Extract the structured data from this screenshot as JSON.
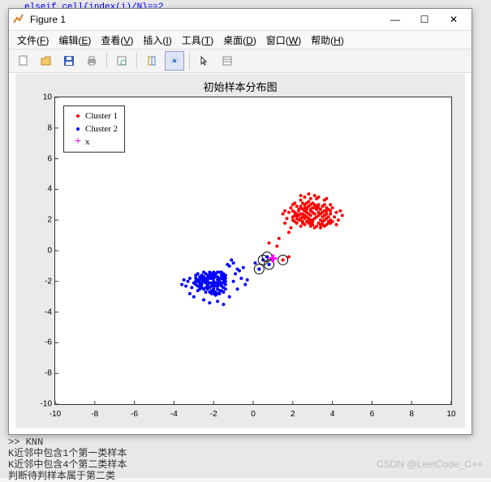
{
  "background_code": "elseif cell{index(i)/N}==2",
  "window": {
    "title": "Figure 1",
    "min_label": "—",
    "max_label": "☐",
    "close_label": "✕"
  },
  "menu": [
    {
      "label": "文件",
      "key": "F"
    },
    {
      "label": "编辑",
      "key": "E"
    },
    {
      "label": "查看",
      "key": "V"
    },
    {
      "label": "插入",
      "key": "I"
    },
    {
      "label": "工具",
      "key": "T"
    },
    {
      "label": "桌面",
      "key": "D"
    },
    {
      "label": "窗口",
      "key": "W"
    },
    {
      "label": "帮助",
      "key": "H"
    }
  ],
  "chart": {
    "type": "scatter",
    "title": "初始样本分布图",
    "title_fontsize": 13,
    "xlim": [
      -10,
      10
    ],
    "ylim": [
      -10,
      10
    ],
    "xtick_step": 2,
    "ytick_step": 2,
    "background_color": "#ffffff",
    "axes_color": "#333333",
    "tick_fontsize": 10,
    "legend": {
      "position": "upper-left",
      "items": [
        {
          "label": "Cluster 1",
          "marker": "dot",
          "color": "#ff0000"
        },
        {
          "label": "Cluster 2",
          "marker": "dot",
          "color": "#0000ff"
        },
        {
          "label": "x",
          "marker": "plus",
          "color": "#ff00ff"
        }
      ]
    },
    "marker_size": 4,
    "cluster1_color": "#ff0000",
    "cluster2_color": "#0000ff",
    "x_marker_color": "#ff00ff",
    "x_marker_size": 10,
    "ring_color": "#000000",
    "cluster1": [
      [
        2.8,
        2.1
      ],
      [
        3.1,
        2.4
      ],
      [
        2.5,
        1.8
      ],
      [
        3.4,
        2.0
      ],
      [
        2.9,
        2.6
      ],
      [
        2.2,
        2.2
      ],
      [
        3.6,
        2.3
      ],
      [
        3.0,
        1.9
      ],
      [
        2.7,
        2.8
      ],
      [
        3.3,
        2.5
      ],
      [
        2.4,
        2.0
      ],
      [
        3.8,
        1.8
      ],
      [
        2.6,
        3.0
      ],
      [
        3.2,
        2.7
      ],
      [
        2.1,
        2.5
      ],
      [
        3.5,
        2.9
      ],
      [
        2.9,
        1.6
      ],
      [
        2.3,
        2.7
      ],
      [
        3.7,
        2.1
      ],
      [
        3.0,
        3.1
      ],
      [
        2.5,
        2.4
      ],
      [
        3.4,
        1.7
      ],
      [
        2.8,
        2.9
      ],
      [
        2.0,
        2.0
      ],
      [
        3.9,
        2.4
      ],
      [
        2.6,
        2.1
      ],
      [
        3.1,
        1.5
      ],
      [
        2.4,
        2.9
      ],
      [
        3.6,
        2.6
      ],
      [
        2.9,
        2.3
      ],
      [
        2.2,
        1.8
      ],
      [
        3.3,
        3.0
      ],
      [
        2.7,
        2.5
      ],
      [
        3.5,
        1.9
      ],
      [
        2.5,
        2.7
      ],
      [
        3.0,
        2.0
      ],
      [
        3.8,
        2.7
      ],
      [
        2.3,
        2.3
      ],
      [
        3.2,
        2.2
      ],
      [
        2.6,
        1.7
      ],
      [
        3.7,
        2.8
      ],
      [
        2.8,
        3.2
      ],
      [
        2.1,
        2.3
      ],
      [
        3.4,
        2.4
      ],
      [
        2.9,
        2.0
      ],
      [
        2.4,
        1.6
      ],
      [
        3.6,
        1.6
      ],
      [
        3.1,
        2.8
      ],
      [
        2.7,
        2.2
      ],
      [
        3.9,
        2.0
      ],
      [
        2.5,
        3.1
      ],
      [
        3.3,
        1.8
      ],
      [
        2.0,
        2.6
      ],
      [
        3.5,
        2.2
      ],
      [
        2.8,
        1.8
      ],
      [
        2.2,
        2.9
      ],
      [
        3.7,
        1.7
      ],
      [
        3.0,
        2.5
      ],
      [
        2.6,
        2.8
      ],
      [
        3.8,
        2.2
      ],
      [
        2.4,
        2.4
      ],
      [
        3.2,
        1.6
      ],
      [
        2.9,
        3.0
      ],
      [
        2.3,
        2.0
      ],
      [
        3.6,
        3.0
      ],
      [
        2.7,
        1.9
      ],
      [
        3.4,
        2.7
      ],
      [
        2.5,
        2.2
      ],
      [
        3.9,
        2.6
      ],
      [
        2.1,
        1.9
      ],
      [
        3.1,
        2.1
      ],
      [
        2.8,
        2.4
      ],
      [
        3.5,
        2.5
      ],
      [
        2.6,
        2.6
      ],
      [
        3.3,
        2.3
      ],
      [
        2.4,
        2.8
      ],
      [
        3.7,
        2.4
      ],
      [
        2.9,
        2.7
      ],
      [
        2.2,
        2.4
      ],
      [
        3.0,
        1.7
      ],
      [
        3.8,
        1.9
      ],
      [
        2.7,
        3.1
      ],
      [
        3.4,
        1.5
      ],
      [
        2.5,
        1.9
      ],
      [
        3.6,
        2.0
      ],
      [
        2.3,
        2.6
      ],
      [
        3.2,
        2.9
      ],
      [
        2.8,
        2.0
      ],
      [
        3.9,
        1.8
      ],
      [
        2.6,
        2.3
      ],
      [
        2.0,
        2.2
      ],
      [
        3.5,
        1.7
      ],
      [
        2.4,
        2.1
      ],
      [
        3.1,
        3.0
      ],
      [
        2.9,
        1.8
      ],
      [
        3.7,
        2.6
      ],
      [
        2.2,
        2.1
      ],
      [
        3.3,
        2.8
      ],
      [
        2.7,
        2.7
      ],
      [
        3.0,
        2.8
      ],
      [
        1.8,
        1.2
      ],
      [
        4.2,
        2.5
      ],
      [
        3.2,
        3.4
      ],
      [
        1.9,
        2.8
      ],
      [
        4.0,
        1.9
      ],
      [
        2.4,
        3.3
      ],
      [
        3.6,
        3.3
      ],
      [
        1.7,
        2.1
      ],
      [
        4.1,
        2.2
      ],
      [
        2.9,
        3.4
      ],
      [
        1.6,
        1.8
      ],
      [
        4.3,
        2.0
      ],
      [
        2.1,
        3.1
      ],
      [
        3.9,
        3.0
      ],
      [
        2.6,
        3.5
      ],
      [
        1.5,
        2.4
      ],
      [
        4.4,
        2.6
      ],
      [
        3.3,
        3.5
      ],
      [
        1.8,
        2.5
      ],
      [
        4.0,
        2.8
      ],
      [
        2.8,
        3.7
      ],
      [
        1.9,
        1.5
      ],
      [
        4.2,
        1.7
      ],
      [
        2.4,
        3.6
      ],
      [
        3.7,
        3.4
      ],
      [
        2.0,
        3.0
      ],
      [
        1.6,
        2.6
      ],
      [
        4.5,
        2.3
      ],
      [
        3.1,
        3.6
      ],
      [
        0.8,
        0.5
      ],
      [
        1.2,
        0.3
      ],
      [
        1.5,
        -0.6
      ],
      [
        1.8,
        -0.4
      ],
      [
        1.3,
        0.8
      ]
    ],
    "cluster2": [
      [
        -2.1,
        -1.8
      ],
      [
        -1.8,
        -2.1
      ],
      [
        -2.4,
        -1.5
      ],
      [
        -1.5,
        -2.4
      ],
      [
        -2.0,
        -2.0
      ],
      [
        -2.7,
        -1.9
      ],
      [
        -1.9,
        -2.7
      ],
      [
        -2.3,
        -2.3
      ],
      [
        -1.6,
        -1.6
      ],
      [
        -2.6,
        -2.1
      ],
      [
        -2.1,
        -2.6
      ],
      [
        -1.7,
        -2.0
      ],
      [
        -2.5,
        -1.7
      ],
      [
        -2.0,
        -1.4
      ],
      [
        -1.4,
        -2.2
      ],
      [
        -2.8,
        -2.0
      ],
      [
        -2.0,
        -2.8
      ],
      [
        -2.2,
        -1.8
      ],
      [
        -1.8,
        -2.5
      ],
      [
        -2.4,
        -2.4
      ],
      [
        -1.5,
        -1.9
      ],
      [
        -2.9,
        -1.8
      ],
      [
        -1.9,
        -1.5
      ],
      [
        -2.3,
        -2.0
      ],
      [
        -2.0,
        -2.3
      ],
      [
        -1.6,
        -2.6
      ],
      [
        -2.6,
        -1.6
      ],
      [
        -2.1,
        -2.1
      ],
      [
        -1.7,
        -2.8
      ],
      [
        -2.7,
        -2.3
      ],
      [
        -2.2,
        -1.4
      ],
      [
        -1.4,
        -1.8
      ],
      [
        -2.5,
        -2.5
      ],
      [
        -1.8,
        -1.7
      ],
      [
        -2.8,
        -2.6
      ],
      [
        -2.0,
        -1.8
      ],
      [
        -1.5,
        -2.1
      ],
      [
        -2.3,
        -1.6
      ],
      [
        -1.9,
        -2.3
      ],
      [
        -2.6,
        -1.9
      ],
      [
        -2.1,
        -1.5
      ],
      [
        -1.6,
        -2.3
      ],
      [
        -2.4,
        -2.1
      ],
      [
        -1.7,
        -1.4
      ],
      [
        -2.9,
        -2.2
      ],
      [
        -2.2,
        -2.7
      ],
      [
        -1.8,
        -1.9
      ],
      [
        -2.5,
        -2.0
      ],
      [
        -2.0,
        -2.5
      ],
      [
        -1.4,
        -1.6
      ],
      [
        -2.7,
        -1.7
      ],
      [
        -1.9,
        -2.9
      ],
      [
        -2.3,
        -1.8
      ],
      [
        -1.5,
        -1.5
      ],
      [
        -2.6,
        -2.4
      ],
      [
        -2.1,
        -2.3
      ],
      [
        -1.6,
        -1.8
      ],
      [
        -2.8,
        -1.9
      ],
      [
        -2.2,
        -2.1
      ],
      [
        -1.7,
        -2.6
      ],
      [
        -2.4,
        -1.8
      ],
      [
        -2.0,
        -1.6
      ],
      [
        -1.8,
        -2.8
      ],
      [
        -2.9,
        -2.0
      ],
      [
        -2.3,
        -2.5
      ],
      [
        -1.4,
        -2.0
      ],
      [
        -2.5,
        -1.4
      ],
      [
        -1.9,
        -2.1
      ],
      [
        -2.7,
        -2.5
      ],
      [
        -2.1,
        -1.7
      ],
      [
        -1.5,
        -2.7
      ],
      [
        -2.6,
        -2.2
      ],
      [
        -2.2,
        -1.6
      ],
      [
        -1.6,
        -2.1
      ],
      [
        -2.8,
        -2.3
      ],
      [
        -2.0,
        -2.1
      ],
      [
        -1.7,
        -1.8
      ],
      [
        -2.4,
        -2.7
      ],
      [
        -1.8,
        -1.4
      ],
      [
        -2.9,
        -1.6
      ],
      [
        -2.3,
        -2.2
      ],
      [
        -1.4,
        -2.5
      ],
      [
        -2.5,
        -1.9
      ],
      [
        -1.9,
        -1.7
      ],
      [
        -2.7,
        -2.1
      ],
      [
        -2.1,
        -2.8
      ],
      [
        -1.5,
        -1.7
      ],
      [
        -2.6,
        -1.8
      ],
      [
        -2.2,
        -2.4
      ],
      [
        -1.6,
        -1.4
      ],
      [
        -2.8,
        -1.5
      ],
      [
        -2.0,
        -2.6
      ],
      [
        -1.7,
        -2.2
      ],
      [
        -2.4,
        -1.9
      ],
      [
        -1.8,
        -2.3
      ],
      [
        -3.0,
        -2.1
      ],
      [
        -3.2,
        -1.8
      ],
      [
        -3.1,
        -2.4
      ],
      [
        -0.8,
        -1.2
      ],
      [
        -1.0,
        -0.8
      ],
      [
        -1.2,
        -1.0
      ],
      [
        -0.9,
        -1.5
      ],
      [
        -1.1,
        -0.6
      ],
      [
        -0.6,
        -1.8
      ],
      [
        -1.3,
        -0.9
      ],
      [
        -0.7,
        -1.3
      ],
      [
        -1.0,
        -2.0
      ],
      [
        -0.5,
        -1.1
      ],
      [
        -3.3,
        -2.0
      ],
      [
        -3.4,
        -2.3
      ],
      [
        -1.2,
        -3.0
      ],
      [
        -2.5,
        -3.2
      ],
      [
        -3.5,
        -1.9
      ],
      [
        -0.4,
        -2.2
      ],
      [
        -1.8,
        -3.3
      ],
      [
        -3.0,
        -3.0
      ],
      [
        -0.8,
        -2.5
      ],
      [
        -2.2,
        -3.4
      ],
      [
        -3.6,
        -2.2
      ],
      [
        -1.5,
        -3.5
      ],
      [
        -0.3,
        -1.9
      ],
      [
        -3.2,
        -2.8
      ],
      [
        0.1,
        -0.8
      ],
      [
        0.5,
        -0.6
      ],
      [
        0.8,
        -0.9
      ],
      [
        0.3,
        -1.2
      ],
      [
        0.7,
        -0.4
      ]
    ],
    "x_point": [
      1.0,
      -0.5
    ],
    "circled": [
      [
        0.5,
        -0.6,
        "#0000ff"
      ],
      [
        0.8,
        -0.9,
        "#0000ff"
      ],
      [
        1.5,
        -0.6,
        "#ff0000"
      ],
      [
        0.3,
        -1.2,
        "#0000ff"
      ],
      [
        0.7,
        -0.4,
        "#0000ff"
      ]
    ]
  },
  "console": {
    "lines": [
      ">> KNN",
      "K近邻中包含1个第一类样本",
      "K近邻中包含4个第二类样本",
      "判断待判样本属于第二类"
    ]
  },
  "watermark": "CSDN @LeetCode_C++"
}
